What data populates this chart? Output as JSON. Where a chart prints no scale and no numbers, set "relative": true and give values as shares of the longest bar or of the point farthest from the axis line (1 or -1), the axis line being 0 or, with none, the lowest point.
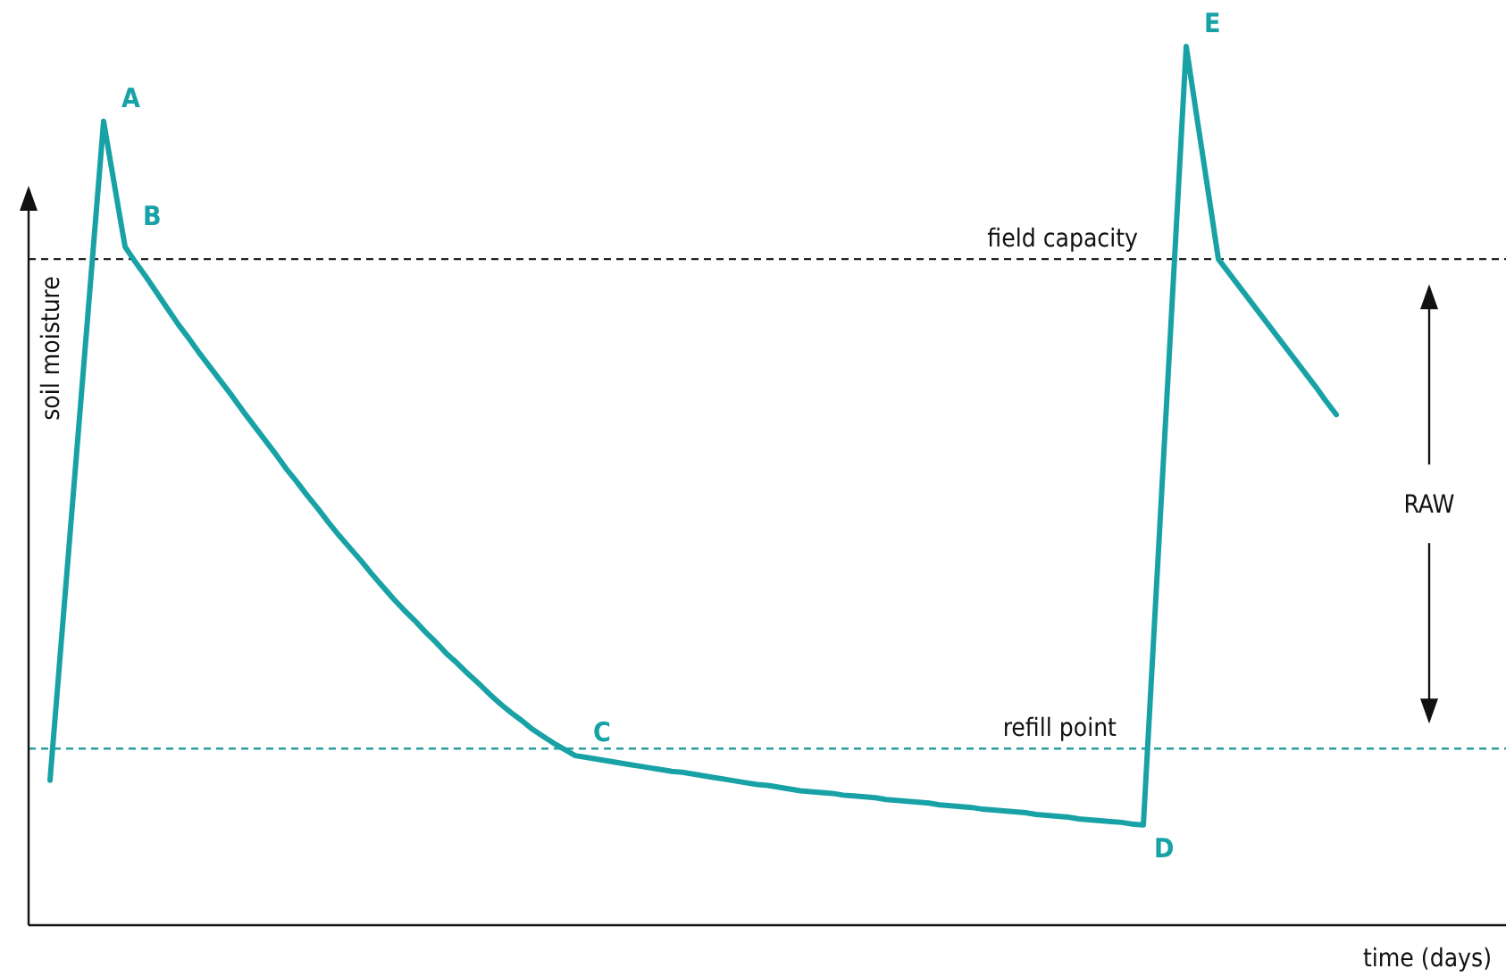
{
  "chart_data": {
    "type": "line",
    "relative": true,
    "xlabel": "time (days)",
    "ylabel": "soil moisture",
    "categories": [
      null,
      null,
      null,
      null,
      null,
      null,
      null,
      null,
      null,
      null,
      null,
      null,
      null,
      null,
      null,
      null,
      null,
      null,
      null,
      null,
      null,
      null,
      null,
      null,
      null,
      null,
      null,
      null,
      null,
      null,
      null,
      null,
      null,
      null,
      null,
      null,
      null,
      null,
      null,
      null,
      null,
      null,
      null,
      null,
      null,
      null,
      null,
      null,
      null,
      null,
      null,
      null,
      null,
      null,
      null,
      null,
      null,
      null,
      null,
      null,
      null,
      null,
      null,
      null,
      null,
      null,
      null,
      null,
      null,
      null,
      null,
      null,
      null,
      null,
      null,
      null,
      null,
      null,
      null,
      null,
      null,
      null,
      null,
      null,
      null,
      null,
      null,
      null,
      null,
      null,
      null,
      null,
      null,
      null,
      null,
      null,
      null,
      null,
      null,
      null,
      null,
      null,
      null,
      null,
      null,
      null,
      null,
      null,
      null,
      null,
      null,
      null,
      null,
      null,
      null,
      null,
      null,
      null,
      null,
      null,
      null
    ],
    "series": [
      {
        "color": "#18a2a6",
        "values": [
          0.165,
          0.315,
          0.465,
          0.615,
          0.765,
          0.915,
          0.843,
          0.772,
          0.754,
          0.737,
          0.719,
          0.701,
          0.683,
          0.667,
          0.65,
          0.634,
          0.618,
          0.602,
          0.585,
          0.569,
          0.553,
          0.537,
          0.52,
          0.505,
          0.489,
          0.474,
          0.458,
          0.443,
          0.429,
          0.415,
          0.4,
          0.386,
          0.372,
          0.359,
          0.347,
          0.334,
          0.322,
          0.309,
          0.298,
          0.286,
          0.275,
          0.263,
          0.252,
          0.242,
          0.233,
          0.223,
          0.215,
          0.207,
          0.2,
          0.193,
          0.191,
          0.189,
          0.187,
          0.185,
          0.183,
          0.181,
          0.179,
          0.177,
          0.175,
          0.174,
          0.172,
          0.17,
          0.168,
          0.166,
          0.164,
          0.162,
          0.16,
          0.159,
          0.157,
          0.155,
          0.153,
          0.152,
          0.151,
          0.15,
          0.148,
          0.147,
          0.146,
          0.145,
          0.143,
          0.142,
          0.141,
          0.14,
          0.139,
          0.137,
          0.136,
          0.135,
          0.134,
          0.132,
          0.131,
          0.13,
          0.129,
          0.128,
          0.126,
          0.125,
          0.124,
          0.123,
          0.121,
          0.12,
          0.119,
          0.118,
          0.117,
          0.115,
          0.114,
          0.335,
          0.557,
          0.778,
          1,
          0.919,
          0.839,
          0.758,
          0.742,
          0.726,
          0.71,
          0.694,
          0.678,
          0.662,
          0.646,
          0.63,
          0.614,
          0.597,
          0.581
        ]
      }
    ],
    "line_style": "solid",
    "marker": "none",
    "ref_lines": [
      {
        "axis": "y",
        "value": 0.758,
        "label": "field capacity",
        "color": "#222222",
        "line_style": "dashed"
      },
      {
        "axis": "y",
        "value": 0.201,
        "label": "refill point",
        "color": "#2a9da0",
        "line_style": "dashed"
      }
    ],
    "annotations": [
      "A",
      "B",
      "C",
      "D",
      "E",
      "RAW"
    ]
  }
}
